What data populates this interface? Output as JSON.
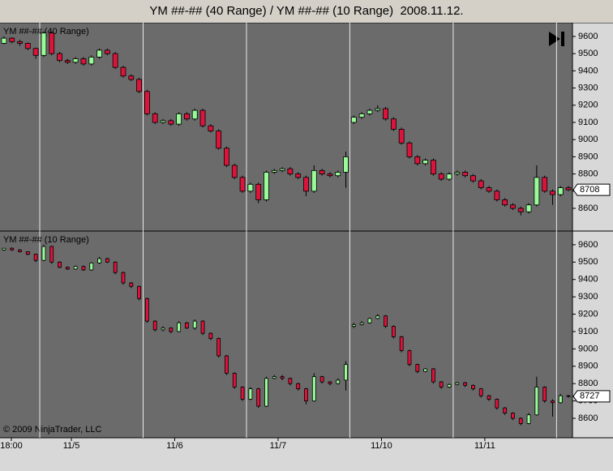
{
  "header": {
    "title": "YM ##-## (40 Range) / YM ##-## (10 Range)  2008.11.12."
  },
  "copyright": "© 2009 NinjaTrader, LLC",
  "x_axis_labels": [
    "18:00",
    "11/5",
    "11/6",
    "11/7",
    "11/10",
    "11/11",
    null
  ],
  "chart_data": [
    {
      "type": "candlestick",
      "label": "YM ##-## (40 Range)",
      "up_color": "#98fb98",
      "down_color": "#dc143c",
      "ylim": [
        8468,
        9680
      ],
      "yticks": [
        8600,
        8700,
        8800,
        8900,
        9000,
        9100,
        9200,
        9300,
        9400,
        9500,
        9600
      ],
      "last_price": 8708,
      "candles": [
        [
          [
            9560,
            9600,
            9555,
            9590
          ],
          [
            9590,
            9595,
            9560,
            9570
          ],
          [
            9570,
            9580,
            9545,
            9560
          ],
          [
            9560,
            9565,
            9520,
            9530
          ],
          [
            9530,
            9535,
            9470,
            9490
          ]
        ],
        [
          [
            9490,
            9630,
            9480,
            9620
          ],
          [
            9620,
            9630,
            9490,
            9500
          ],
          [
            9500,
            9510,
            9450,
            9460
          ],
          [
            9460,
            9470,
            9440,
            9450
          ],
          [
            9450,
            9480,
            9440,
            9470
          ],
          [
            9470,
            9480,
            9430,
            9440
          ],
          [
            9440,
            9490,
            9430,
            9480
          ],
          [
            9480,
            9530,
            9470,
            9520
          ],
          [
            9520,
            9530,
            9490,
            9500
          ],
          [
            9500,
            9510,
            9410,
            9420
          ],
          [
            9420,
            9430,
            9360,
            9370
          ],
          [
            9370,
            9380,
            9340,
            9350
          ],
          [
            9350,
            9360,
            9270,
            9280
          ]
        ],
        [
          [
            9280,
            9290,
            9140,
            9150
          ],
          [
            9150,
            9160,
            9090,
            9100
          ],
          [
            9100,
            9120,
            9090,
            9110
          ],
          [
            9110,
            9120,
            9080,
            9090
          ],
          [
            9090,
            9160,
            9080,
            9150
          ],
          [
            9150,
            9160,
            9110,
            9120
          ],
          [
            9120,
            9180,
            9110,
            9170
          ],
          [
            9170,
            9180,
            9070,
            9080
          ],
          [
            9080,
            9090,
            9040,
            9050
          ],
          [
            9050,
            9060,
            8940,
            8950
          ],
          [
            8950,
            8960,
            8840,
            8850
          ],
          [
            8850,
            8860,
            8770,
            8780
          ],
          [
            8780,
            8790,
            8690,
            8700
          ]
        ],
        [
          [
            8700,
            8750,
            8690,
            8740
          ],
          [
            8740,
            8750,
            8630,
            8650
          ],
          [
            8650,
            8820,
            8640,
            8810
          ],
          [
            8810,
            8830,
            8800,
            8820
          ],
          [
            8820,
            8840,
            8810,
            8830
          ],
          [
            8830,
            8840,
            8790,
            8800
          ],
          [
            8800,
            8810,
            8770,
            8780
          ],
          [
            8780,
            8790,
            8670,
            8700
          ],
          [
            8700,
            8850,
            8690,
            8820
          ],
          [
            8820,
            8830,
            8790,
            8800
          ],
          [
            8800,
            8810,
            8780,
            8790
          ],
          [
            8790,
            8820,
            8780,
            8810
          ],
          [
            8810,
            8930,
            8720,
            8900
          ]
        ],
        [
          [
            9100,
            9140,
            9090,
            9130
          ],
          [
            9130,
            9160,
            9120,
            9150
          ],
          [
            9150,
            9180,
            9140,
            9170
          ],
          [
            9170,
            9200,
            9160,
            9180
          ],
          [
            9180,
            9190,
            9110,
            9120
          ],
          [
            9120,
            9130,
            9050,
            9060
          ],
          [
            9060,
            9070,
            8970,
            8980
          ],
          [
            8980,
            8990,
            8890,
            8900
          ],
          [
            8900,
            8910,
            8850,
            8860
          ],
          [
            8860,
            8890,
            8850,
            8880
          ],
          [
            8880,
            8890,
            8790,
            8800
          ],
          [
            8800,
            8810,
            8760,
            8770
          ],
          [
            8770,
            8810,
            8760,
            8800
          ]
        ],
        [
          [
            8800,
            8820,
            8790,
            8810
          ],
          [
            8810,
            8820,
            8780,
            8790
          ],
          [
            8790,
            8800,
            8750,
            8760
          ],
          [
            8760,
            8770,
            8710,
            8720
          ],
          [
            8720,
            8730,
            8690,
            8700
          ],
          [
            8700,
            8710,
            8640,
            8650
          ],
          [
            8650,
            8660,
            8610,
            8620
          ],
          [
            8620,
            8630,
            8590,
            8600
          ],
          [
            8600,
            8610,
            8560,
            8580
          ],
          [
            8580,
            8630,
            8570,
            8620
          ],
          [
            8620,
            8850,
            8610,
            8780
          ],
          [
            8780,
            8790,
            8690,
            8700
          ],
          [
            8700,
            8710,
            8620,
            8680
          ]
        ],
        [
          [
            8680,
            8730,
            8670,
            8720
          ],
          [
            8720,
            8730,
            8700,
            8708
          ]
        ]
      ]
    },
    {
      "type": "candlestick",
      "label": "YM ##-## (10 Range)",
      "up_color": "#98fb98",
      "down_color": "#dc143c",
      "ylim": [
        8488,
        9679
      ],
      "yticks": [
        8600,
        8700,
        8800,
        8900,
        9000,
        9100,
        9200,
        9300,
        9400,
        9500,
        9600
      ],
      "last_price": 8727,
      "candles": [
        [
          [
            9570,
            9580,
            9565,
            9580
          ],
          [
            9580,
            9585,
            9565,
            9570
          ],
          [
            9570,
            9575,
            9555,
            9560
          ],
          [
            9560,
            9562,
            9540,
            9545
          ],
          [
            9545,
            9550,
            9500,
            9510
          ]
        ],
        [
          [
            9510,
            9600,
            9505,
            9590
          ],
          [
            9590,
            9595,
            9490,
            9500
          ],
          [
            9500,
            9505,
            9465,
            9470
          ],
          [
            9470,
            9475,
            9455,
            9460
          ],
          [
            9460,
            9480,
            9455,
            9475
          ],
          [
            9475,
            9480,
            9450,
            9455
          ],
          [
            9455,
            9500,
            9450,
            9495
          ],
          [
            9495,
            9530,
            9490,
            9520
          ],
          [
            9520,
            9525,
            9495,
            9500
          ],
          [
            9500,
            9505,
            9430,
            9440
          ],
          [
            9440,
            9445,
            9370,
            9380
          ],
          [
            9380,
            9385,
            9350,
            9360
          ],
          [
            9360,
            9365,
            9280,
            9290
          ]
        ],
        [
          [
            9290,
            9295,
            9150,
            9160
          ],
          [
            9160,
            9165,
            9100,
            9110
          ],
          [
            9110,
            9130,
            9100,
            9120
          ],
          [
            9120,
            9125,
            9090,
            9100
          ],
          [
            9100,
            9160,
            9095,
            9150
          ],
          [
            9150,
            9155,
            9115,
            9120
          ],
          [
            9120,
            9170,
            9110,
            9160
          ],
          [
            9160,
            9165,
            9080,
            9090
          ],
          [
            9090,
            9095,
            9050,
            9060
          ],
          [
            9060,
            9065,
            8950,
            8960
          ],
          [
            8960,
            8965,
            8850,
            8860
          ],
          [
            8860,
            8865,
            8770,
            8780
          ],
          [
            8780,
            8785,
            8700,
            8710
          ]
        ],
        [
          [
            8710,
            8780,
            8705,
            8770
          ],
          [
            8770,
            8775,
            8660,
            8670
          ],
          [
            8670,
            8840,
            8665,
            8830
          ],
          [
            8830,
            8850,
            8825,
            8840
          ],
          [
            8840,
            8850,
            8820,
            8830
          ],
          [
            8830,
            8835,
            8790,
            8800
          ],
          [
            8800,
            8805,
            8760,
            8770
          ],
          [
            8770,
            8775,
            8680,
            8700
          ],
          [
            8700,
            8860,
            8695,
            8840
          ],
          [
            8840,
            8845,
            8800,
            8810
          ],
          [
            8810,
            8815,
            8790,
            8800
          ],
          [
            8800,
            8830,
            8795,
            8820
          ],
          [
            8820,
            8930,
            8760,
            8910
          ]
        ],
        [
          [
            9130,
            9150,
            9120,
            9140
          ],
          [
            9140,
            9160,
            9135,
            9150
          ],
          [
            9150,
            9180,
            9145,
            9175
          ],
          [
            9175,
            9200,
            9170,
            9190
          ],
          [
            9190,
            9195,
            9120,
            9130
          ],
          [
            9130,
            9135,
            9060,
            9070
          ],
          [
            9070,
            9075,
            8980,
            8990
          ],
          [
            8990,
            8995,
            8900,
            8910
          ],
          [
            8910,
            8915,
            8860,
            8870
          ],
          [
            8870,
            8890,
            8865,
            8885
          ],
          [
            8885,
            8890,
            8800,
            8810
          ],
          [
            8810,
            8815,
            8770,
            8780
          ],
          [
            8780,
            8800,
            8775,
            8795
          ]
        ],
        [
          [
            8795,
            8810,
            8790,
            8805
          ],
          [
            8805,
            8810,
            8780,
            8790
          ],
          [
            8790,
            8795,
            8760,
            8770
          ],
          [
            8770,
            8775,
            8720,
            8730
          ],
          [
            8730,
            8735,
            8700,
            8710
          ],
          [
            8710,
            8715,
            8650,
            8660
          ],
          [
            8660,
            8665,
            8620,
            8630
          ],
          [
            8630,
            8635,
            8590,
            8600
          ],
          [
            8600,
            8605,
            8560,
            8570
          ],
          [
            8570,
            8630,
            8565,
            8620
          ],
          [
            8620,
            8840,
            8615,
            8780
          ],
          [
            8780,
            8785,
            8690,
            8700
          ],
          [
            8700,
            8710,
            8610,
            8690
          ]
        ],
        [
          [
            8690,
            8740,
            8685,
            8730
          ],
          [
            8730,
            8735,
            8720,
            8727
          ]
        ]
      ]
    }
  ]
}
